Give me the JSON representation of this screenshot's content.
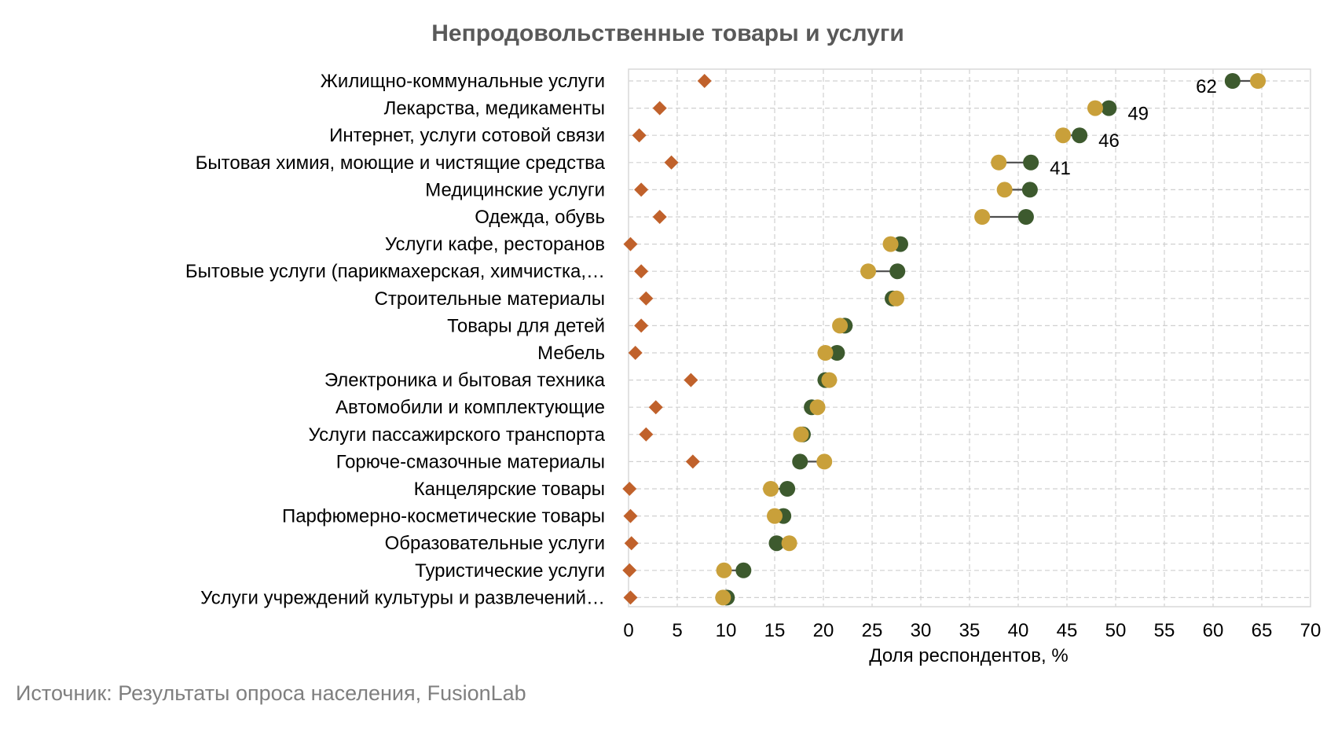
{
  "chart_data": {
    "type": "scatter",
    "title": "Непродовольственные товары и услуги",
    "xlabel": "Доля респондентов, %",
    "xlim": [
      0,
      70
    ],
    "xticks": [
      0,
      5,
      10,
      15,
      20,
      25,
      30,
      35,
      40,
      45,
      50,
      55,
      60,
      65,
      70
    ],
    "grid": true,
    "categories": [
      "Жилищно-коммунальные услуги",
      "Лекарства, медикаменты",
      "Интернет, услуги сотовой связи",
      "Бытовая химия, моющие и чистящие средства",
      "Медицинские услуги",
      "Одежда, обувь",
      "Услуги кафе, ресторанов",
      "Бытовые услуги (парикмахерская, химчистка,…",
      "Строительные материалы",
      "Товары для детей",
      "Мебель",
      "Электроника и бытовая техника",
      "Автомобили и комплектующие",
      "Услуги пассажирского транспорта",
      "Горюче-смазочные материалы",
      "Канцелярские товары",
      "Парфюмерно-косметические товары",
      "Образовательные услуги",
      "Туристические услуги",
      "Услуги учреждений культуры и развлечений…"
    ],
    "series": [
      {
        "marker": "circle",
        "color": "#3d5a2e",
        "values": [
          62,
          49.3,
          46.3,
          41.3,
          41.2,
          40.8,
          27.9,
          27.6,
          27.1,
          22.2,
          21.4,
          20.2,
          18.8,
          17.9,
          17.6,
          16.3,
          15.9,
          15.2,
          11.8,
          10.1
        ],
        "labels": [
          "62",
          "49",
          "46",
          "41",
          "",
          "",
          "",
          "",
          "",
          "",
          "",
          "",
          "",
          "",
          "",
          "",
          "",
          "",
          "",
          ""
        ]
      },
      {
        "marker": "circle",
        "color": "#c9a03a",
        "values": [
          64.6,
          47.9,
          44.6,
          38.0,
          38.6,
          36.3,
          26.9,
          24.6,
          27.5,
          21.7,
          20.2,
          20.6,
          19.4,
          17.7,
          20.1,
          14.6,
          15.0,
          16.5,
          9.8,
          9.7
        ]
      },
      {
        "marker": "diamond",
        "color": "#c0612b",
        "values": [
          7.8,
          3.2,
          1.1,
          4.4,
          1.3,
          3.2,
          0.2,
          1.3,
          1.8,
          1.3,
          0.7,
          6.4,
          2.8,
          1.8,
          6.6,
          0.1,
          0.2,
          0.3,
          0.1,
          0.2
        ]
      }
    ],
    "connector_color": "#4d4d4d"
  },
  "source": "Источник: Результаты опроса населения, FusionLab"
}
